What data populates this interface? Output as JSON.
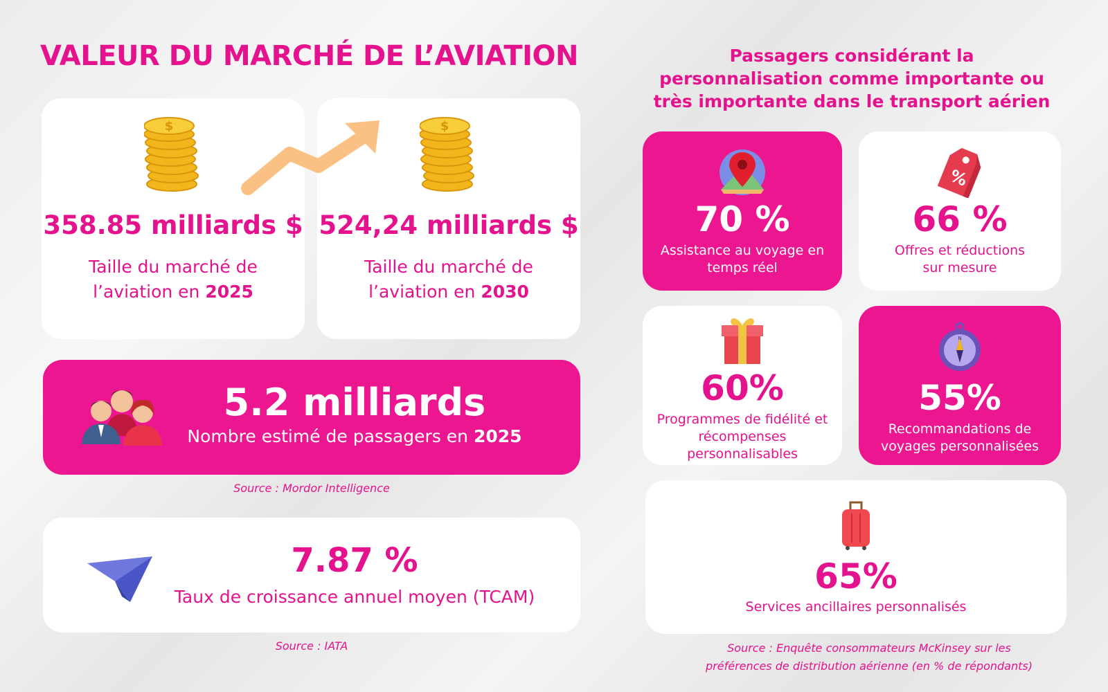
{
  "title": "VALEUR DU MARCHÉ DE L’AVIATION",
  "market": {
    "y2025": {
      "value": "358.85 milliards $",
      "caption_pre": "Taille du marché de l’aviation en ",
      "year": "2025"
    },
    "y2030": {
      "value": "524,24 milliards $",
      "caption_pre": "Taille du marché de l’aviation en ",
      "year": "2030"
    }
  },
  "passengers": {
    "value": "5.2 milliards",
    "caption_pre": "Nombre estimé de passagers en ",
    "year": "2025",
    "source": "Source : Mordor Intelligence"
  },
  "cagr": {
    "value": "7.87 %",
    "caption": "Taux de croissance annuel moyen (TCAM)",
    "source": "Source : IATA"
  },
  "survey": {
    "title": "Passagers considérant la personnalisation comme importante ou très importante dans le transport aérien",
    "items": [
      {
        "value": "70 %",
        "label": "Assistance au voyage en temps réel",
        "icon": "map-pin-icon"
      },
      {
        "value": "66 %",
        "label": "Offres et réductions sur mesure",
        "icon": "price-tag-icon"
      },
      {
        "value": "60%",
        "label": "Programmes de fidélité et récompenses personnalisables",
        "icon": "gift-icon"
      },
      {
        "value": "55%",
        "label": "Recommandations de voyages personnalisées",
        "icon": "compass-icon"
      },
      {
        "value": "65%",
        "label": "Services ancillaires personnalisés",
        "icon": "suitcase-icon"
      }
    ],
    "source": "Source : Enquête consommateurs McKinsey sur les préférences de distribution aérienne (en % de répondants)"
  },
  "colors": {
    "accent": "#e5128d",
    "card": "#ffffff",
    "filled": "#ec1690"
  }
}
